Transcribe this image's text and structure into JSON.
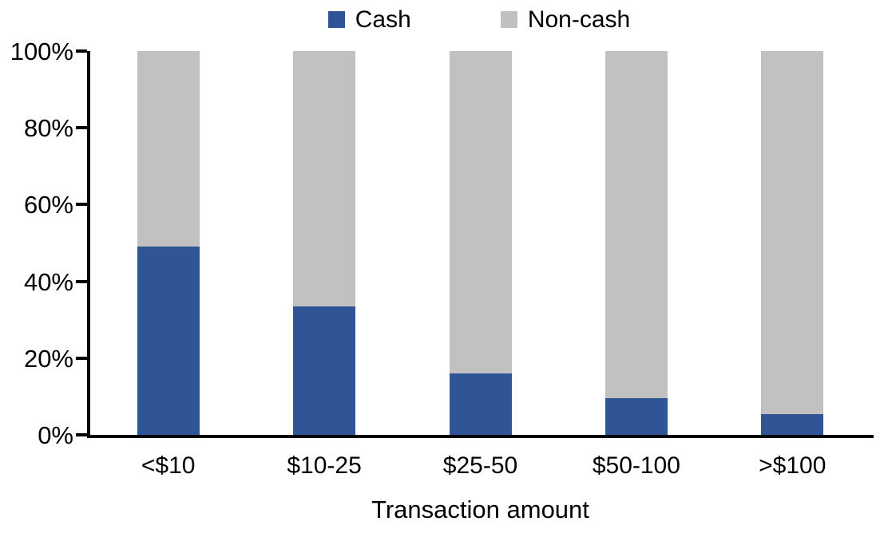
{
  "chart_data": {
    "type": "bar",
    "stacked": true,
    "stack_mode": "percent",
    "title": "",
    "xlabel": "Transaction amount",
    "ylabel": "",
    "categories": [
      "<$10",
      "$10-25",
      "$25-50",
      "$50-100",
      ">$100"
    ],
    "series": [
      {
        "name": "Cash",
        "color": "#2F5596",
        "values": [
          49,
          33.5,
          16,
          9.5,
          5.5
        ]
      },
      {
        "name": "Non-cash",
        "color": "#C1C1C1",
        "values": [
          51,
          66.5,
          84,
          90.5,
          94.5
        ]
      }
    ],
    "y_axis": {
      "min": 0,
      "max": 100,
      "tick_step": 20,
      "ticks": [
        "0%",
        "20%",
        "40%",
        "60%",
        "80%",
        "100%"
      ]
    },
    "legend_position": "top",
    "grid": false
  },
  "colors": {
    "cash": "#2F5596",
    "noncash": "#C1C1C1",
    "axis": "#000000",
    "background": "#FFFFFF"
  }
}
